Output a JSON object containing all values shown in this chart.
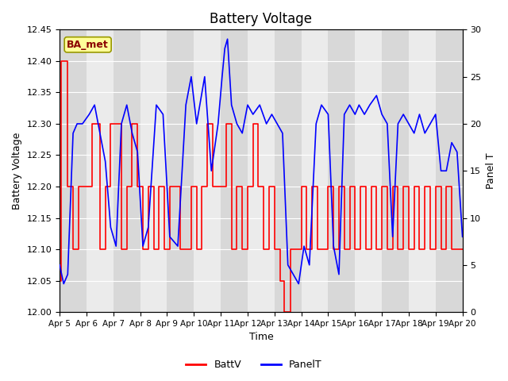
{
  "title": "Battery Voltage",
  "xlabel": "Time",
  "ylabel_left": "Battery Voltage",
  "ylabel_right": "Panel T",
  "ylim_left": [
    12.0,
    12.45
  ],
  "ylim_right": [
    0,
    30
  ],
  "yticks_left": [
    12.0,
    12.05,
    12.1,
    12.15,
    12.2,
    12.25,
    12.3,
    12.35,
    12.4,
    12.45
  ],
  "yticks_right": [
    0,
    5,
    10,
    15,
    20,
    25,
    30
  ],
  "xtick_labels": [
    "Apr 5",
    "Apr 6",
    "Apr 7",
    "Apr 8",
    "Apr 9",
    "Apr 10",
    "Apr 11",
    "Apr 12",
    "Apr 13",
    "Apr 14",
    "Apr 15",
    "Apr 16",
    "Apr 17",
    "Apr 18",
    "Apr 19",
    "Apr 20"
  ],
  "background_color": "#ffffff",
  "plot_bg_color": "#d8d8d8",
  "band_color": "#ebebeb",
  "label_box_text": "BA_met",
  "label_box_facecolor": "#ffff99",
  "label_box_edgecolor": "#999900",
  "label_box_textcolor": "#8b0000",
  "battv_color": "#ff0000",
  "panelt_color": "#0000ff",
  "legend_labels": [
    "BattV",
    "PanelT"
  ],
  "battv_x": [
    5.0,
    5.05,
    5.3,
    5.5,
    5.7,
    6.0,
    6.2,
    6.5,
    6.7,
    6.9,
    7.1,
    7.3,
    7.5,
    7.7,
    7.9,
    8.1,
    8.3,
    8.5,
    8.7,
    8.9,
    9.1,
    9.5,
    9.9,
    10.1,
    10.3,
    10.5,
    10.7,
    11.0,
    11.2,
    11.4,
    11.6,
    11.8,
    12.0,
    12.2,
    12.4,
    12.6,
    12.8,
    13.0,
    13.2,
    13.35,
    13.6,
    14.0,
    14.2,
    14.4,
    14.6,
    15.0,
    15.2,
    15.4,
    15.6,
    15.8,
    16.0,
    16.2,
    16.4,
    16.6,
    16.8,
    17.0,
    17.2,
    17.4,
    17.6,
    17.8,
    18.0,
    18.2,
    18.4,
    18.6,
    18.8,
    19.0,
    19.2,
    19.4,
    19.6,
    19.8,
    20.0
  ],
  "battv_y": [
    12.05,
    12.4,
    12.2,
    12.1,
    12.2,
    12.2,
    12.3,
    12.1,
    12.2,
    12.3,
    12.3,
    12.1,
    12.2,
    12.3,
    12.2,
    12.1,
    12.2,
    12.1,
    12.2,
    12.1,
    12.2,
    12.1,
    12.2,
    12.1,
    12.2,
    12.3,
    12.2,
    12.2,
    12.3,
    12.1,
    12.2,
    12.1,
    12.2,
    12.3,
    12.2,
    12.1,
    12.2,
    12.1,
    12.05,
    12.0,
    12.1,
    12.2,
    12.1,
    12.2,
    12.1,
    12.2,
    12.1,
    12.2,
    12.1,
    12.2,
    12.1,
    12.2,
    12.1,
    12.2,
    12.1,
    12.2,
    12.1,
    12.2,
    12.1,
    12.2,
    12.1,
    12.2,
    12.1,
    12.2,
    12.1,
    12.2,
    12.1,
    12.2,
    12.1,
    12.1,
    12.1
  ],
  "panelt_x": [
    5.0,
    5.15,
    5.3,
    5.5,
    5.65,
    5.85,
    6.1,
    6.3,
    6.5,
    6.7,
    6.9,
    7.1,
    7.3,
    7.5,
    7.7,
    7.9,
    8.1,
    8.3,
    8.6,
    8.85,
    9.1,
    9.4,
    9.7,
    9.9,
    10.1,
    10.4,
    10.65,
    10.9,
    11.05,
    11.15,
    11.25,
    11.4,
    11.6,
    11.8,
    12.0,
    12.2,
    12.45,
    12.7,
    12.9,
    13.1,
    13.3,
    13.5,
    13.7,
    13.9,
    14.1,
    14.3,
    14.55,
    14.75,
    15.0,
    15.2,
    15.4,
    15.6,
    15.8,
    16.0,
    16.15,
    16.35,
    16.55,
    16.8,
    17.0,
    17.2,
    17.4,
    17.6,
    17.8,
    18.0,
    18.2,
    18.4,
    18.6,
    18.8,
    19.0,
    19.2,
    19.4,
    19.6,
    19.8,
    20.0
  ],
  "panelt_y": [
    5,
    3,
    4,
    19,
    20,
    20,
    21,
    22,
    19,
    16,
    9,
    7,
    20,
    22,
    19,
    17,
    7,
    9,
    22,
    21,
    8,
    7,
    22,
    25,
    20,
    25,
    15,
    20,
    25,
    28,
    29,
    22,
    20,
    19,
    22,
    21,
    22,
    20,
    21,
    20,
    19,
    5,
    4,
    3,
    7,
    5,
    20,
    22,
    21,
    7,
    4,
    21,
    22,
    21,
    22,
    21,
    22,
    23,
    21,
    20,
    8,
    20,
    21,
    20,
    19,
    21,
    19,
    20,
    21,
    15,
    15,
    18,
    17,
    8
  ],
  "xlim": [
    5.0,
    20.0
  ],
  "band_pairs": [
    [
      6,
      7
    ],
    [
      8,
      9
    ],
    [
      10,
      11
    ],
    [
      12,
      13
    ],
    [
      14,
      15
    ],
    [
      16,
      17
    ],
    [
      18,
      19
    ]
  ]
}
